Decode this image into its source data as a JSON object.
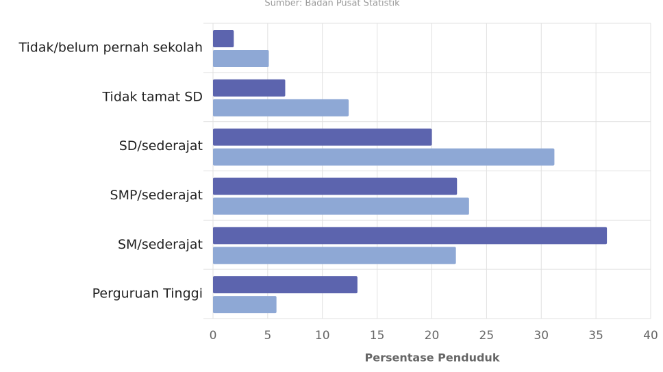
{
  "chart_data": {
    "type": "bar",
    "orientation": "horizontal",
    "subtitle": "Sumber: Badan Pusat Statistik",
    "x_label": "Persentase Penduduk",
    "categories": [
      "Tidak/belum pernah sekolah",
      "Tidak tamat SD",
      "SD/sederajat",
      "SMP/sederajat",
      "SM/sederajat",
      "Perguruan Tinggi"
    ],
    "series": [
      {
        "color": "#5c64ae",
        "values": [
          1.9,
          6.6,
          20,
          22.3,
          36,
          13.2
        ]
      },
      {
        "color": "#8ea8d5",
        "values": [
          5.1,
          12.4,
          31.2,
          23.4,
          22.2,
          5.8
        ]
      }
    ],
    "xlim": [
      0,
      40
    ],
    "xticks": [
      0,
      5,
      10,
      15,
      20,
      25,
      30,
      35,
      40
    ],
    "grid": true
  }
}
